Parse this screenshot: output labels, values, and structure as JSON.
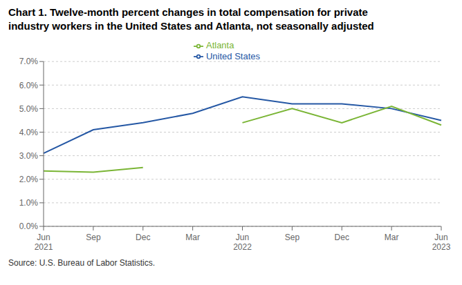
{
  "chart_data": {
    "type": "line",
    "title": "Chart 1. Twelve-month percent changes in total compensation for private",
    "subtitle": "industry workers in the United States and Atlanta, not seasonally adjusted",
    "annotations": [
      "Source: U.S. Bureau of Labor Statistics."
    ],
    "categories": [
      "Jun\n2021",
      "Sep",
      "Dec",
      "Mar",
      "Jun\n2022",
      "Sep",
      "Dec",
      "Mar",
      "Jun\n2023"
    ],
    "series": [
      {
        "name": "United States",
        "color": "#2457a4",
        "values": [
          3.1,
          4.1,
          4.4,
          4.8,
          5.5,
          5.2,
          5.2,
          5.0,
          4.5
        ]
      },
      {
        "name": "Atlanta",
        "color": "#7ab535",
        "values": [
          2.35,
          2.3,
          2.5,
          null,
          4.4,
          5.0,
          4.4,
          5.1,
          4.3
        ]
      }
    ],
    "ylim": [
      0.0,
      7.0
    ],
    "yticks": [
      {
        "value": 0.0,
        "label": "0.0%"
      },
      {
        "value": 1.0,
        "label": "1.0%"
      },
      {
        "value": 2.0,
        "label": "2.0%"
      },
      {
        "value": 3.0,
        "label": "3.0%"
      },
      {
        "value": 4.0,
        "label": "4.0%"
      },
      {
        "value": 5.0,
        "label": "5.0%"
      },
      {
        "value": 6.0,
        "label": "6.0%"
      },
      {
        "value": 7.0,
        "label": "7.0%"
      }
    ],
    "grid": true,
    "legend": "top"
  }
}
